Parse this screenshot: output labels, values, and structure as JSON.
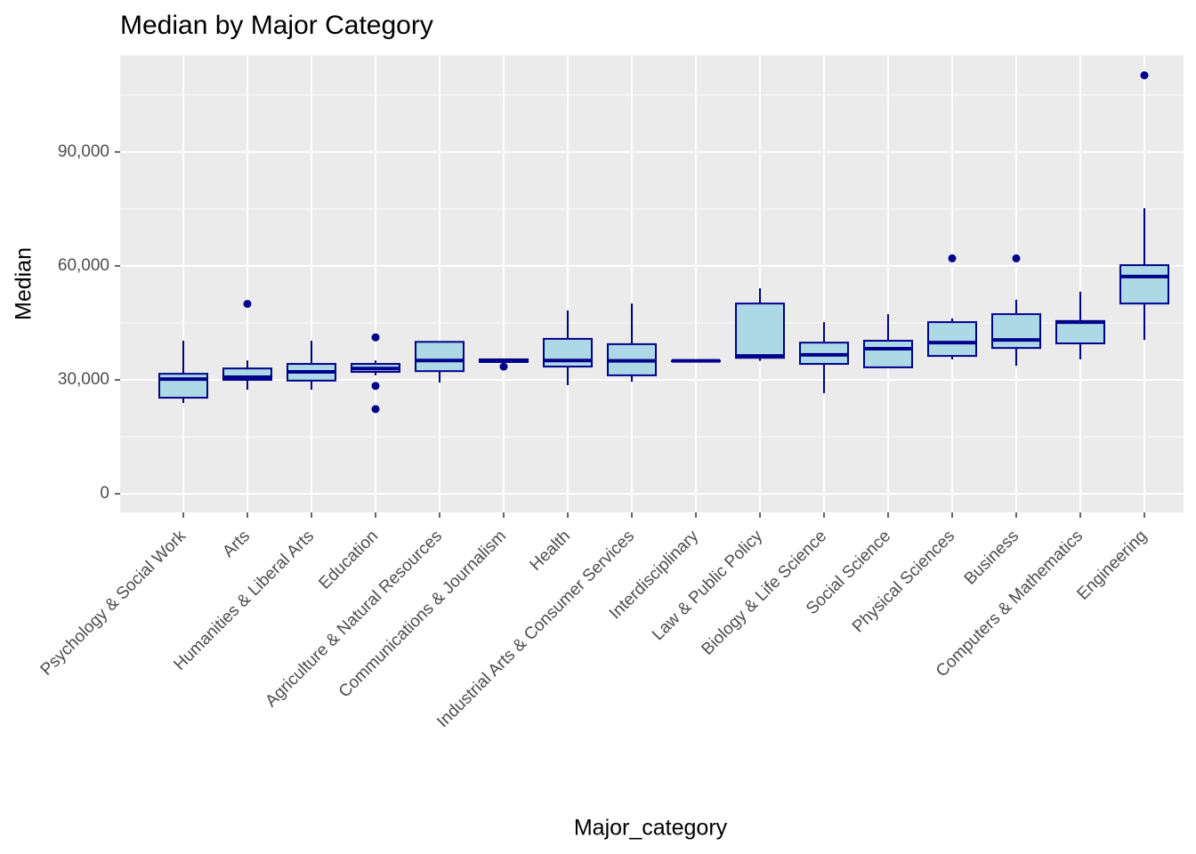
{
  "chart_data": {
    "type": "boxplot",
    "title": "Median by Major Category",
    "x_label": "Major_category",
    "y_label": "Median",
    "categories": [
      "Psychology & Social Work",
      "Arts",
      "Humanities & Liberal Arts",
      "Education",
      "Agriculture & Natural Resources",
      "Communications & Journalism",
      "Health",
      "Industrial Arts & Consumer Services",
      "Interdisciplinary",
      "Law & Public Policy",
      "Biology & Life Science",
      "Social Science",
      "Physical Sciences",
      "Business",
      "Computers & Mathematics",
      "Engineering"
    ],
    "boxes": [
      {
        "low": 23900,
        "q1": 25300,
        "median": 30200,
        "q3": 31600,
        "high": 40300
      },
      {
        "low": 27400,
        "q1": 30000,
        "median": 30700,
        "q3": 33000,
        "high": 35100,
        "outliers": [
          50000
        ]
      },
      {
        "low": 27400,
        "q1": 29800,
        "median": 32100,
        "q3": 34200,
        "high": 40300
      },
      {
        "low": 31200,
        "q1": 32100,
        "median": 33000,
        "q3": 34200,
        "high": 35100,
        "outliers": [
          41200,
          28400,
          22300
        ]
      },
      {
        "low": 29300,
        "q1": 32300,
        "median": 35100,
        "q3": 40000,
        "high": 40000
      },
      {
        "low": 34700,
        "q1": 34700,
        "median": 35000,
        "q3": 35400,
        "high": 35400,
        "outliers": [
          33500
        ]
      },
      {
        "low": 28600,
        "q1": 33500,
        "median": 35100,
        "q3": 40800,
        "high": 48300
      },
      {
        "low": 29500,
        "q1": 31200,
        "median": 35000,
        "q3": 39400,
        "high": 50100
      },
      {
        "low": 35000,
        "q1": 35000,
        "median": 35000,
        "q3": 35000,
        "high": 35000
      },
      {
        "low": 35000,
        "q1": 35800,
        "median": 36300,
        "q3": 50100,
        "high": 54100
      },
      {
        "low": 26500,
        "q1": 34200,
        "median": 36600,
        "q3": 39800,
        "high": 45200
      },
      {
        "low": 33300,
        "q1": 33300,
        "median": 38200,
        "q3": 40300,
        "high": 47300
      },
      {
        "low": 35400,
        "q1": 36300,
        "median": 39800,
        "q3": 45200,
        "high": 46200,
        "outliers": [
          62000
        ]
      },
      {
        "low": 33700,
        "q1": 38400,
        "median": 40500,
        "q3": 47300,
        "high": 51100,
        "outliers": [
          62000
        ]
      },
      {
        "low": 35400,
        "q1": 39600,
        "median": 45200,
        "q3": 45500,
        "high": 53200
      },
      {
        "low": 40500,
        "q1": 50100,
        "median": 57200,
        "q3": 60200,
        "high": 75200,
        "outliers": [
          110200
        ]
      }
    ],
    "fill": "#add8e6",
    "stroke": "#00008b",
    "ylim": [
      -4900,
      115500
    ],
    "yticks": [
      0,
      {
        "value": 30000,
        "label": "30,000"
      },
      {
        "value": 60000,
        "label": "60,000"
      },
      {
        "value": 90000,
        "label": "90,000"
      }
    ],
    "grid": true,
    "minor_grid": true
  }
}
